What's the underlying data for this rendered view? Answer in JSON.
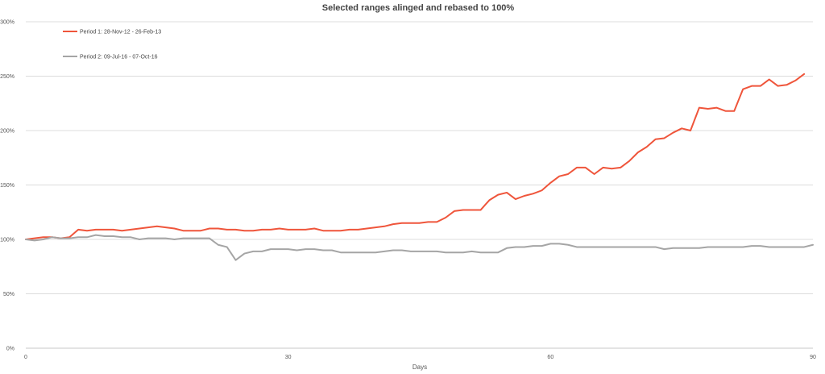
{
  "chart_data": {
    "type": "line",
    "title": "Selected ranges alinged and rebased to 100%",
    "xlabel": "Days",
    "ylabel": "",
    "xlim": [
      0,
      90
    ],
    "ylim": [
      0,
      300
    ],
    "x_ticks": [
      0,
      30,
      60,
      90
    ],
    "y_ticks": [
      0,
      50,
      100,
      150,
      200,
      250,
      300
    ],
    "y_tick_labels": [
      "0%",
      "50%",
      "100%",
      "150%",
      "200%",
      "250%",
      "300%"
    ],
    "grid": "horizontal",
    "legend_position": "top-left",
    "series": [
      {
        "name": "Period 1: 28-Nov-12 - 26-Feb-13",
        "color": "#ef553b",
        "values": [
          100,
          101,
          102,
          102,
          101,
          102,
          109,
          108,
          109,
          109,
          109,
          108,
          109,
          110,
          111,
          112,
          111,
          110,
          108,
          108,
          108,
          110,
          110,
          109,
          109,
          108,
          108,
          109,
          109,
          110,
          109,
          109,
          109,
          110,
          108,
          108,
          108,
          109,
          109,
          110,
          111,
          112,
          114,
          115,
          115,
          115,
          116,
          116,
          120,
          126,
          127,
          127,
          127,
          136,
          141,
          143,
          137,
          140,
          142,
          145,
          152,
          158,
          160,
          166,
          166,
          160,
          166,
          165,
          166,
          172,
          180,
          185,
          192,
          193,
          198,
          202,
          200,
          221,
          220,
          221,
          218,
          218,
          238,
          241,
          241,
          247,
          241,
          242,
          246,
          252
        ]
      },
      {
        "name": "Period 2: 09-Jul-16 - 07-Oct-16",
        "color": "#a5a5a5",
        "values": [
          100,
          99,
          100,
          102,
          101,
          101,
          102,
          102,
          104,
          103,
          103,
          102,
          102,
          100,
          101,
          101,
          101,
          100,
          101,
          101,
          101,
          101,
          95,
          93,
          81,
          87,
          89,
          89,
          91,
          91,
          91,
          90,
          91,
          91,
          90,
          90,
          88,
          88,
          88,
          88,
          88,
          89,
          90,
          90,
          89,
          89,
          89,
          89,
          88,
          88,
          88,
          89,
          88,
          88,
          88,
          92,
          93,
          93,
          94,
          94,
          96,
          96,
          95,
          93,
          93,
          93,
          93,
          93,
          93,
          93,
          93,
          93,
          93,
          91,
          92,
          92,
          92,
          92,
          93,
          93,
          93,
          93,
          93,
          94,
          94,
          93,
          93,
          93,
          93,
          93,
          95
        ]
      }
    ]
  }
}
